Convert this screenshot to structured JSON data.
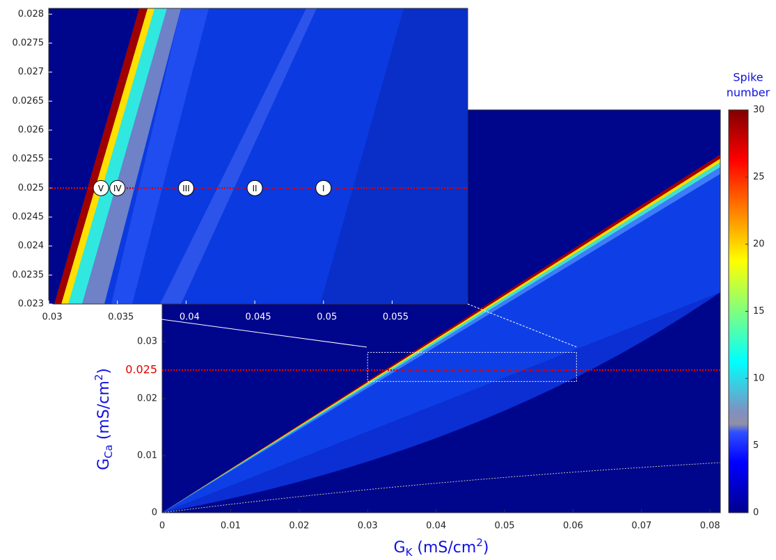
{
  "chart_data": [
    {
      "type": "heatmap",
      "xlabel": [
        "G",
        "K",
        " (mS/cm",
        "2",
        ")"
      ],
      "ylabel": [
        "G",
        "Ca",
        " (mS/cm",
        "2",
        ")"
      ],
      "xlim": [
        0,
        0.0815
      ],
      "xticks": [
        0,
        0.01,
        0.02,
        0.03,
        0.04,
        0.05,
        0.06,
        0.07,
        0.08
      ],
      "ylim": [
        0,
        0.0706
      ],
      "yticks": [
        0,
        0.01,
        0.02,
        0.03
      ],
      "highlight_y": {
        "value": 0.025,
        "color": "#e00000"
      },
      "colorbar": {
        "title": [
          "Spike",
          "number"
        ],
        "lim": [
          0,
          30
        ],
        "ticks": [
          0,
          5,
          10,
          15,
          20,
          25,
          30
        ],
        "colormap": "jet"
      }
    },
    {
      "type": "heatmap",
      "xlim": [
        0.03,
        0.0605
      ],
      "xticks": [
        0.03,
        0.035,
        0.04,
        0.045,
        0.05,
        0.055
      ],
      "ylim": [
        0.023,
        0.0281
      ],
      "yticks": [
        0.023,
        0.0235,
        0.024,
        0.0245,
        0.025,
        0.0255,
        0.026,
        0.0265,
        0.027,
        0.0275,
        0.028
      ],
      "highlight_y": {
        "value": 0.025,
        "color": "#e00000"
      },
      "markers": [
        {
          "label": "V",
          "x": 0.0338,
          "y": 0.025
        },
        {
          "label": "IV",
          "x": 0.035,
          "y": 0.025
        },
        {
          "label": "III",
          "x": 0.04,
          "y": 0.025
        },
        {
          "label": "II",
          "x": 0.045,
          "y": 0.025
        },
        {
          "label": "I",
          "x": 0.05,
          "y": 0.025
        }
      ]
    }
  ]
}
